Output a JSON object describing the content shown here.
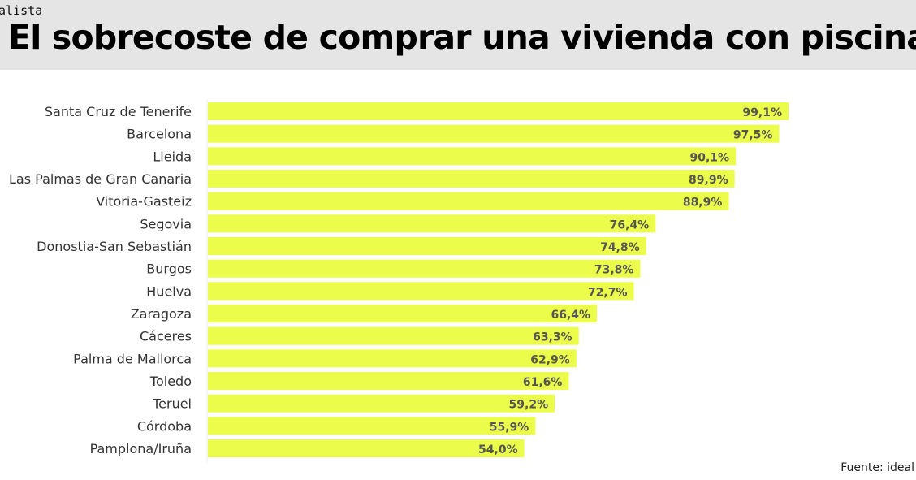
{
  "header": {
    "brand": "alista",
    "title": "El sobrecoste de comprar una vivienda con piscina"
  },
  "source": "Fuente: ideal",
  "colors": {
    "bar": "#ecfc4a",
    "header_bg": "#e5e5e5",
    "value_text": "#555555"
  },
  "chart_data": {
    "type": "bar",
    "orientation": "horizontal",
    "title": "El sobrecoste de comprar una vivienda con piscina",
    "categories": [
      "Santa Cruz de Tenerife",
      "Barcelona",
      "Lleida",
      "Las Palmas de Gran Canaria",
      "Vitoria-Gasteiz",
      "Segovia",
      "Donostia-San Sebastián",
      "Burgos",
      "Huelva",
      "Zaragoza",
      "Cáceres",
      "Palma de Mallorca",
      "Toledo",
      "Teruel",
      "Córdoba",
      "Pamplona/Iruña"
    ],
    "values": [
      99.1,
      97.5,
      90.1,
      89.9,
      88.9,
      76.4,
      74.8,
      73.8,
      72.7,
      66.4,
      63.3,
      62.9,
      61.6,
      59.2,
      55.9,
      54.0
    ],
    "value_labels": [
      "99,1%",
      "97,5%",
      "90,1%",
      "89,9%",
      "88,9%",
      "76,4%",
      "74,8%",
      "73,8%",
      "72,7%",
      "66,4%",
      "63,3%",
      "62,9%",
      "61,6%",
      "59,2%",
      "55,9%",
      "54,0%"
    ],
    "xlim": [
      0,
      100
    ],
    "grid": false,
    "xlabel": "",
    "ylabel": ""
  }
}
